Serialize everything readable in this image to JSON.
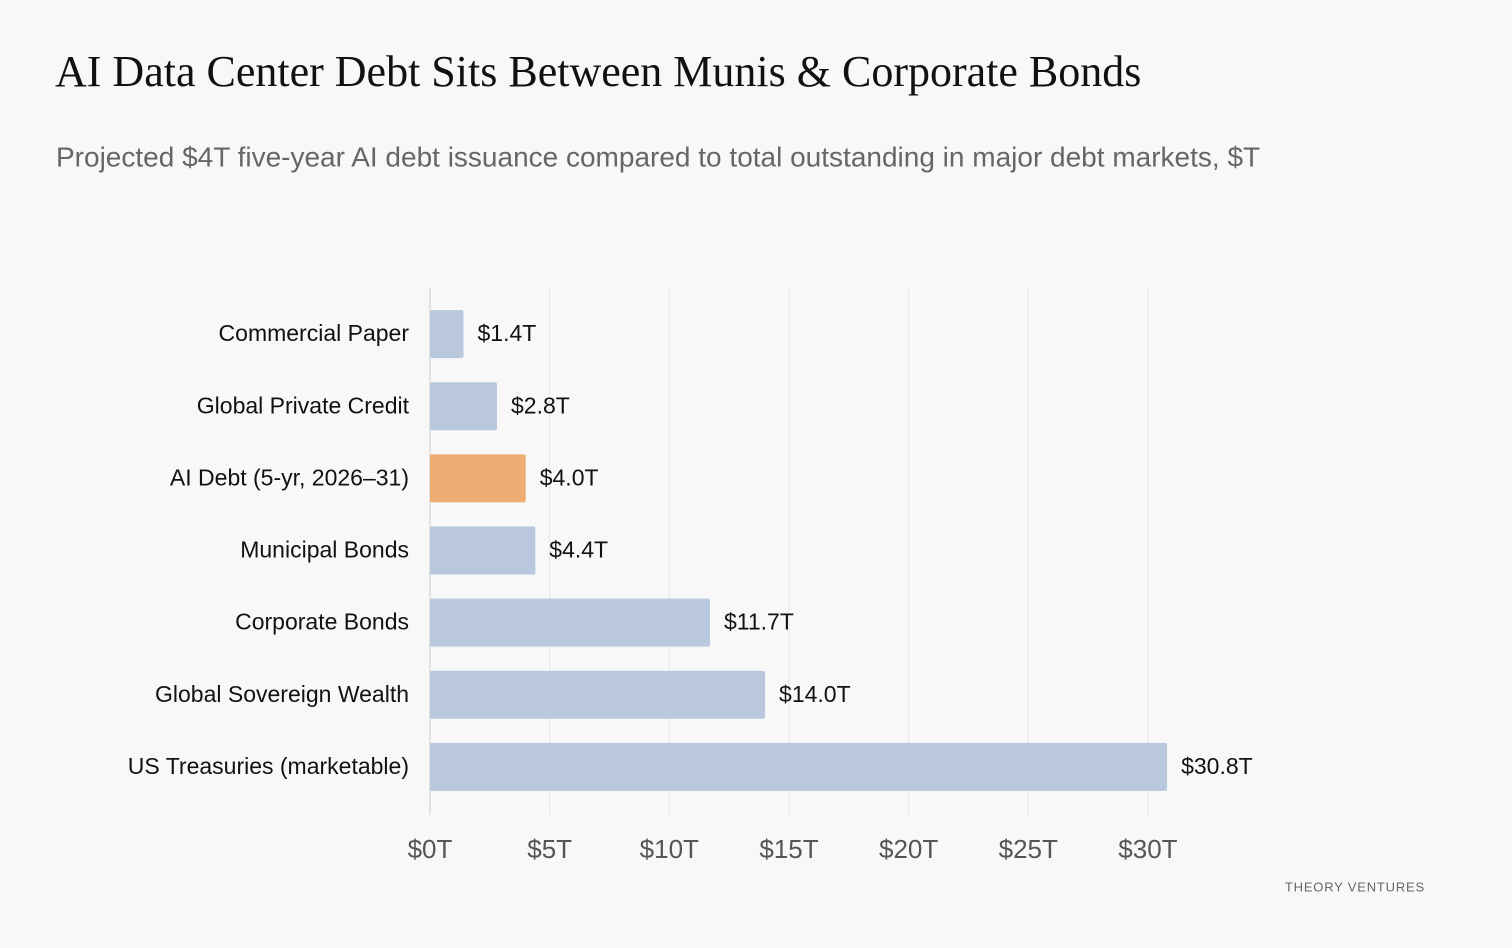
{
  "chart_data": {
    "type": "bar",
    "orientation": "horizontal",
    "title": "AI Data Center Debt Sits Between Munis & Corporate Bonds",
    "subtitle": "Projected $4T five-year AI debt issuance compared to total outstanding in major debt markets, $T",
    "source": "THEORY VENTURES",
    "categories": [
      "Commercial Paper",
      "Global Private Credit",
      "AI Debt (5-yr, 2026–31)",
      "Municipal Bonds",
      "Corporate Bonds",
      "Global Sovereign Wealth",
      "US Treasuries (marketable)"
    ],
    "values": [
      1.4,
      2.8,
      4.0,
      4.4,
      11.7,
      14.0,
      30.8
    ],
    "value_labels": [
      "$1.4T",
      "$2.8T",
      "$4.0T",
      "$4.4T",
      "$11.7T",
      "$14.0T",
      "$30.8T"
    ],
    "colors": [
      "#b9c8dc",
      "#b9c8dc",
      "#eead72",
      "#b9c8dc",
      "#b9c8dc",
      "#b9c8dc",
      "#b9c8dc"
    ],
    "xlim": [
      0,
      35
    ],
    "xticks": [
      {
        "value": 0,
        "label": "$0T"
      },
      {
        "value": 5,
        "label": "$5T"
      },
      {
        "value": 10,
        "label": "$10T"
      },
      {
        "value": 15,
        "label": "$15T"
      },
      {
        "value": 20,
        "label": "$20T"
      },
      {
        "value": 25,
        "label": "$25T"
      },
      {
        "value": 30,
        "label": "$30T"
      }
    ],
    "grid": true
  }
}
